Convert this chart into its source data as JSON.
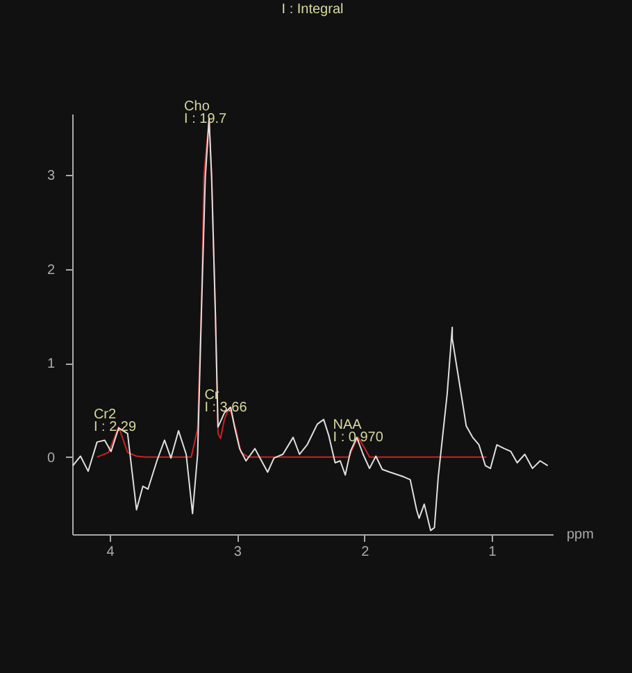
{
  "chart_data": {
    "type": "line",
    "title": "I : Integral",
    "xlabel": "ppm",
    "xlim": [
      4.295,
      0.52
    ],
    "xticks": [
      4,
      3,
      2,
      1
    ],
    "ylim": [
      -0.82,
      3.65
    ],
    "yticks": [
      0,
      1,
      2,
      3
    ],
    "grid": false,
    "marker": "none",
    "line_style": "solid",
    "series": [
      {
        "color": "#e0e0e0",
        "x": [
          4.29,
          4.23,
          4.17,
          4.1,
          4.04,
          3.99,
          3.93,
          3.86,
          3.79,
          3.74,
          3.7,
          3.63,
          3.57,
          3.52,
          3.46,
          3.4,
          3.35,
          3.31,
          3.28,
          3.25,
          3.22,
          3.2,
          3.17,
          3.15,
          3.13,
          3.1,
          3.05,
          3.02,
          2.98,
          2.93,
          2.86,
          2.82,
          2.76,
          2.71,
          2.64,
          2.56,
          2.51,
          2.45,
          2.41,
          2.37,
          2.32,
          2.28,
          2.23,
          2.19,
          2.15,
          2.11,
          2.06,
          2.01,
          1.96,
          1.91,
          1.86,
          1.8,
          1.69,
          1.64,
          1.59,
          1.57,
          1.53,
          1.48,
          1.45,
          1.42,
          1.35,
          1.31,
          1.31,
          1.24,
          1.2,
          1.15,
          1.1,
          1.05,
          1.01,
          0.96,
          0.9,
          0.85,
          0.8,
          0.74,
          0.68,
          0.62,
          0.56
        ],
        "values": [
          -0.09,
          0.01,
          -0.15,
          0.16,
          0.18,
          0.06,
          0.31,
          0.25,
          -0.56,
          -0.31,
          -0.34,
          -0.04,
          0.18,
          -0.01,
          0.28,
          0.03,
          -0.6,
          0.03,
          1.56,
          2.97,
          3.6,
          2.97,
          1.5,
          0.32,
          0.38,
          0.47,
          0.53,
          0.32,
          0.09,
          -0.04,
          0.09,
          -0.01,
          -0.16,
          -0.01,
          0.03,
          0.21,
          0.03,
          0.13,
          0.24,
          0.35,
          0.4,
          0.23,
          -0.06,
          -0.04,
          -0.19,
          0.06,
          0.21,
          0.03,
          -0.12,
          0.01,
          -0.13,
          -0.16,
          -0.21,
          -0.24,
          -0.56,
          -0.65,
          -0.5,
          -0.78,
          -0.75,
          -0.21,
          0.67,
          1.38,
          1.26,
          0.67,
          0.33,
          0.21,
          0.13,
          -0.09,
          -0.12,
          0.13,
          0.09,
          0.06,
          -0.06,
          0.03,
          -0.12,
          -0.04,
          -0.09
        ]
      },
      {
        "color": "#cc2222",
        "x": [
          4.1,
          4.01,
          3.93,
          3.86,
          3.79,
          3.72,
          3.36,
          3.31,
          3.28,
          3.26,
          3.22,
          3.2,
          3.17,
          3.15,
          3.13,
          3.1,
          3.06,
          3.01,
          2.97,
          2.91,
          2.18,
          2.12,
          2.09,
          2.05,
          2.0,
          1.96,
          1.04
        ],
        "values": [
          0,
          0.05,
          0.32,
          0.05,
          0.01,
          0,
          0,
          0.3,
          1.6,
          3.0,
          3.6,
          3.0,
          1.5,
          0.25,
          0.2,
          0.4,
          0.53,
          0.3,
          0.05,
          0,
          0,
          0,
          0.1,
          0.21,
          0.1,
          0,
          0
        ]
      }
    ],
    "annotations": [
      {
        "text": "Cr2\nI : 2.29",
        "x": 3.93,
        "y": 0.32
      },
      {
        "text": "Cho\nI : 19.7",
        "x": 3.22,
        "y": 3.6
      },
      {
        "text": "Cr\nI : 3.66",
        "x": 3.06,
        "y": 0.53
      },
      {
        "text": "NAA\nI : 0.970",
        "x": 2.05,
        "y": 0.21
      }
    ]
  }
}
